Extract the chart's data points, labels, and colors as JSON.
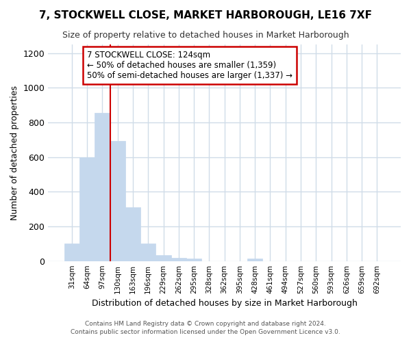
{
  "title": "7, STOCKWELL CLOSE, MARKET HARBOROUGH, LE16 7XF",
  "subtitle": "Size of property relative to detached houses in Market Harborough",
  "xlabel": "Distribution of detached houses by size in Market Harborough",
  "ylabel": "Number of detached properties",
  "bar_color": "#c5d8ed",
  "bar_edge_color": "#c5d8ed",
  "categories": [
    "31sqm",
    "64sqm",
    "97sqm",
    "130sqm",
    "163sqm",
    "196sqm",
    "229sqm",
    "262sqm",
    "295sqm",
    "328sqm",
    "362sqm",
    "395sqm",
    "428sqm",
    "461sqm",
    "494sqm",
    "527sqm",
    "560sqm",
    "593sqm",
    "626sqm",
    "659sqm",
    "692sqm"
  ],
  "values": [
    100,
    600,
    855,
    695,
    310,
    100,
    33,
    20,
    15,
    0,
    0,
    0,
    15,
    0,
    0,
    0,
    0,
    0,
    0,
    0,
    0
  ],
  "ylim": [
    0,
    1250
  ],
  "yticks": [
    0,
    200,
    400,
    600,
    800,
    1000,
    1200
  ],
  "vline_x": 3,
  "annotation_text": "7 STOCKWELL CLOSE: 124sqm\n← 50% of detached houses are smaller (1,359)\n50% of semi-detached houses are larger (1,337) →",
  "annotation_box_facecolor": "white",
  "annotation_box_edgecolor": "#cc0000",
  "vline_color": "#cc0000",
  "background_color": "white",
  "plot_background_color": "white",
  "grid_color": "#d0dce8",
  "footer_line1": "Contains HM Land Registry data © Crown copyright and database right 2024.",
  "footer_line2": "Contains public sector information licensed under the Open Government Licence v3.0."
}
